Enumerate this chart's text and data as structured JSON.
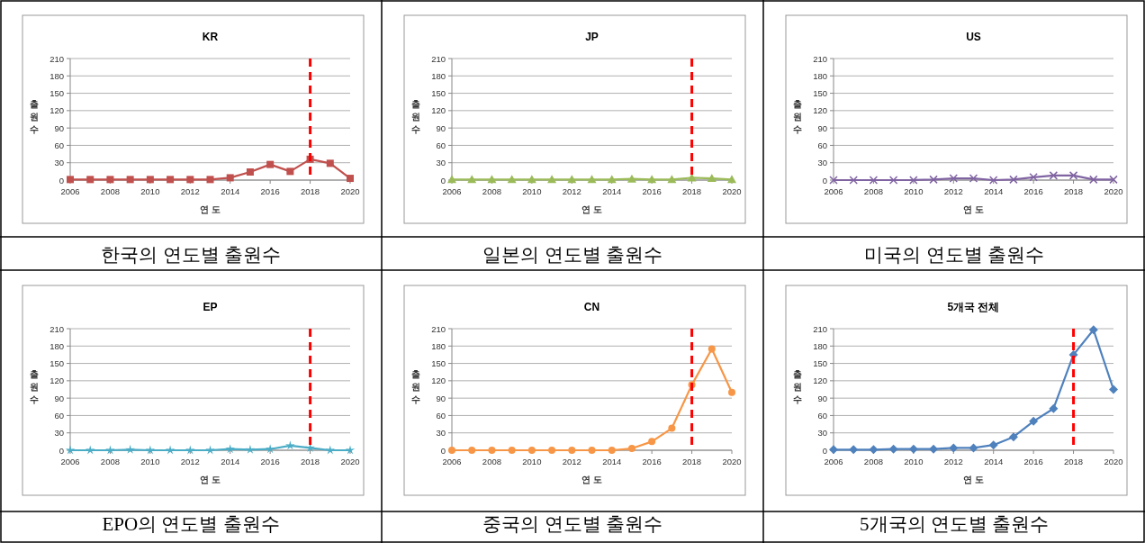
{
  "chart_data": [
    {
      "type": "line",
      "title": "KR",
      "xlabel": "연 도",
      "ylabel": "출원수",
      "annotations": [
        "한국의 연도별 출원수"
      ],
      "x": [
        2006,
        2007,
        2008,
        2009,
        2010,
        2011,
        2012,
        2013,
        2014,
        2015,
        2016,
        2017,
        2018,
        2019,
        2020
      ],
      "values": [
        1,
        1,
        1,
        1,
        1,
        1,
        1,
        1,
        4,
        14,
        27,
        15,
        36,
        29,
        3
      ],
      "color": "#c0504d",
      "marker": "square",
      "xlim": [
        2006,
        2020
      ],
      "xticks": [
        2006,
        2008,
        2010,
        2012,
        2014,
        2016,
        2018,
        2020
      ],
      "ylim": [
        0,
        210
      ],
      "yticks": [
        0,
        30,
        60,
        90,
        120,
        150,
        180,
        210
      ],
      "grid": "y",
      "ref_lines": [
        {
          "axis": "x",
          "value": 2018,
          "color": "#ff0000",
          "line_style": "dashed"
        }
      ]
    },
    {
      "type": "line",
      "title": "JP",
      "xlabel": "연 도",
      "ylabel": "출원수",
      "annotations": [
        "일본의 연도별 출원수"
      ],
      "x": [
        2006,
        2007,
        2008,
        2009,
        2010,
        2011,
        2012,
        2013,
        2014,
        2015,
        2016,
        2017,
        2018,
        2019,
        2020
      ],
      "values": [
        1,
        1,
        1,
        1,
        1,
        1,
        1,
        1,
        1,
        2,
        1,
        1,
        4,
        3,
        1
      ],
      "color": "#9bbb59",
      "marker": "triangle",
      "xlim": [
        2006,
        2020
      ],
      "xticks": [
        2006,
        2008,
        2010,
        2012,
        2014,
        2016,
        2018,
        2020
      ],
      "ylim": [
        0,
        210
      ],
      "yticks": [
        0,
        30,
        60,
        90,
        120,
        150,
        180,
        210
      ],
      "grid": "y",
      "ref_lines": [
        {
          "axis": "x",
          "value": 2018,
          "color": "#ff0000",
          "line_style": "dashed"
        }
      ]
    },
    {
      "type": "line",
      "title": "US",
      "xlabel": "연 도",
      "ylabel": "출원수",
      "annotations": [
        "미국의 연도별 출원수"
      ],
      "x": [
        2006,
        2007,
        2008,
        2009,
        2010,
        2011,
        2012,
        2013,
        2014,
        2015,
        2016,
        2017,
        2018,
        2019,
        2020
      ],
      "values": [
        0,
        0,
        0,
        0,
        0,
        1,
        3,
        3,
        0,
        1,
        5,
        8,
        8,
        1,
        1
      ],
      "color": "#8064a2",
      "marker": "cross",
      "xlim": [
        2006,
        2020
      ],
      "xticks": [
        2006,
        2008,
        2010,
        2012,
        2014,
        2016,
        2018,
        2020
      ],
      "ylim": [
        0,
        210
      ],
      "yticks": [
        0,
        30,
        60,
        90,
        120,
        150,
        180,
        210
      ],
      "grid": "y"
    },
    {
      "type": "line",
      "title": "EP",
      "xlabel": "연 도",
      "ylabel": "출원수",
      "annotations": [
        "EPO의 연도별 출원수"
      ],
      "x": [
        2006,
        2007,
        2008,
        2009,
        2010,
        2011,
        2012,
        2013,
        2014,
        2015,
        2016,
        2017,
        2018,
        2019,
        2020
      ],
      "values": [
        0,
        0,
        0,
        1,
        0,
        0,
        0,
        0,
        2,
        1,
        2,
        8,
        4,
        0,
        0
      ],
      "color": "#4bacc6",
      "marker": "star",
      "xlim": [
        2006,
        2020
      ],
      "xticks": [
        2006,
        2008,
        2010,
        2012,
        2014,
        2016,
        2018,
        2020
      ],
      "ylim": [
        0,
        210
      ],
      "yticks": [
        0,
        30,
        60,
        90,
        120,
        150,
        180,
        210
      ],
      "grid": "y",
      "ref_lines": [
        {
          "axis": "x",
          "value": 2018,
          "color": "#ff0000",
          "line_style": "dashed"
        }
      ]
    },
    {
      "type": "line",
      "title": "CN",
      "xlabel": "연 도",
      "ylabel": "출원수",
      "annotations": [
        "중국의 연도별 출원수"
      ],
      "x": [
        2006,
        2007,
        2008,
        2009,
        2010,
        2011,
        2012,
        2013,
        2014,
        2015,
        2016,
        2017,
        2018,
        2019,
        2020
      ],
      "values": [
        0,
        0,
        0,
        0,
        0,
        0,
        0,
        0,
        0,
        3,
        15,
        38,
        113,
        175,
        100
      ],
      "color": "#f79646",
      "marker": "circle",
      "xlim": [
        2006,
        2020
      ],
      "xticks": [
        2006,
        2008,
        2010,
        2012,
        2014,
        2016,
        2018,
        2020
      ],
      "ylim": [
        0,
        210
      ],
      "yticks": [
        0,
        30,
        60,
        90,
        120,
        150,
        180,
        210
      ],
      "grid": "y",
      "ref_lines": [
        {
          "axis": "x",
          "value": 2018,
          "color": "#ff0000",
          "line_style": "dashed"
        }
      ]
    },
    {
      "type": "line",
      "title": "5개국 전체",
      "xlabel": "연 도",
      "ylabel": "출원수",
      "annotations": [
        "5개국의 연도별 출원수"
      ],
      "x": [
        2006,
        2007,
        2008,
        2009,
        2010,
        2011,
        2012,
        2013,
        2014,
        2015,
        2016,
        2017,
        2018,
        2019,
        2020
      ],
      "values": [
        1,
        1,
        1,
        2,
        2,
        2,
        4,
        4,
        9,
        23,
        50,
        72,
        165,
        208,
        105
      ],
      "color": "#4f81bd",
      "marker": "diamond",
      "xlim": [
        2006,
        2020
      ],
      "xticks": [
        2006,
        2008,
        2010,
        2012,
        2014,
        2016,
        2018,
        2020
      ],
      "ylim": [
        0,
        210
      ],
      "yticks": [
        0,
        30,
        60,
        90,
        120,
        150,
        180,
        210
      ],
      "grid": "y",
      "ref_lines": [
        {
          "axis": "x",
          "value": 2018,
          "color": "#ff0000",
          "line_style": "dashed"
        }
      ]
    }
  ]
}
